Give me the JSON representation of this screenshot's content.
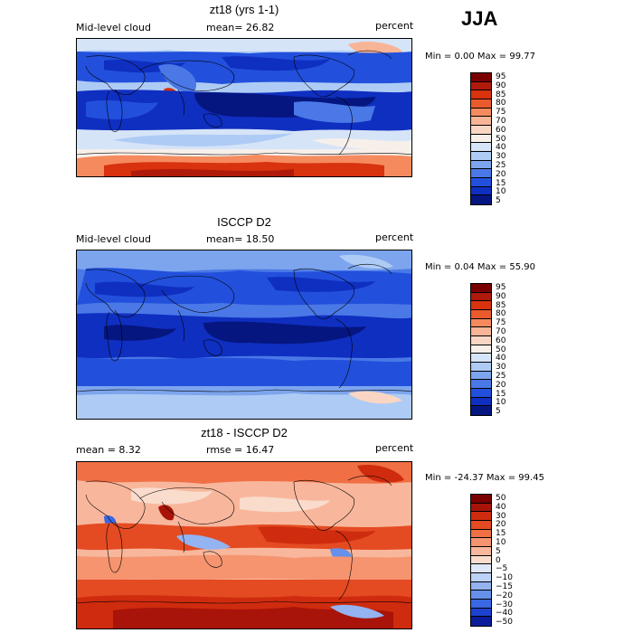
{
  "season": "JJA",
  "colors": {
    "dark_blue": "#0a1a8c",
    "mid_blue": "#1f4fe0",
    "light_blue": "#a9c7f5",
    "pale": "#f3e9e2",
    "orange": "#ef6a42",
    "dark_red": "#8b0e08"
  },
  "panels": [
    {
      "title": "zt18 (yrs 1-1)",
      "left_label": "Mid-level cloud",
      "center_label": "mean=   26.82",
      "right_label": "percent",
      "minmax": "Min =    0.00 Max =   99.77",
      "colorbar_labels": [
        "95",
        "90",
        "85",
        "80",
        "75",
        "70",
        "60",
        "50",
        "40",
        "30",
        "25",
        "20",
        "15",
        "10",
        "5"
      ],
      "colorbar_colors": [
        "#7a0000",
        "#b01a0a",
        "#d8320f",
        "#ea5a2c",
        "#f58a5e",
        "#f8b496",
        "#f9d6c3",
        "#f6efea",
        "#d6e4f8",
        "#aecbf5",
        "#7da5ee",
        "#4a78e6",
        "#2250dc",
        "#0f2fc1",
        "#061680"
      ]
    },
    {
      "title": "ISCCP D2",
      "left_label": "Mid-level cloud",
      "center_label": "mean=   18.50",
      "right_label": "percent",
      "minmax": "Min =    0.04 Max =   55.90",
      "colorbar_labels": [
        "95",
        "90",
        "85",
        "80",
        "75",
        "70",
        "60",
        "50",
        "40",
        "30",
        "25",
        "20",
        "15",
        "10",
        "5"
      ],
      "colorbar_colors": [
        "#7a0000",
        "#b01a0a",
        "#d8320f",
        "#ea5a2c",
        "#f58a5e",
        "#f8b496",
        "#f9d6c3",
        "#f6efea",
        "#d6e4f8",
        "#aecbf5",
        "#7da5ee",
        "#4a78e6",
        "#2250dc",
        "#0f2fc1",
        "#061680"
      ]
    },
    {
      "title": "zt18 - ISCCP D2",
      "left_label": "mean =    8.32",
      "center_label": "rmse =   16.47",
      "right_label": "percent",
      "minmax": "Min = -24.37 Max =   99.45",
      "colorbar_labels": [
        "50",
        "40",
        "30",
        "20",
        "15",
        "10",
        "5",
        "0",
        "−5",
        "−10",
        "−15",
        "−20",
        "−30",
        "−40",
        "−50"
      ],
      "colorbar_colors": [
        "#7a0000",
        "#a81409",
        "#cf2b0e",
        "#e44b22",
        "#f06f45",
        "#f5946f",
        "#f8b79c",
        "#fadccd",
        "#dfe8f8",
        "#bcd2f6",
        "#93b3f1",
        "#6690ea",
        "#3a68e2",
        "#1c42cf",
        "#0b1d9a"
      ]
    }
  ]
}
